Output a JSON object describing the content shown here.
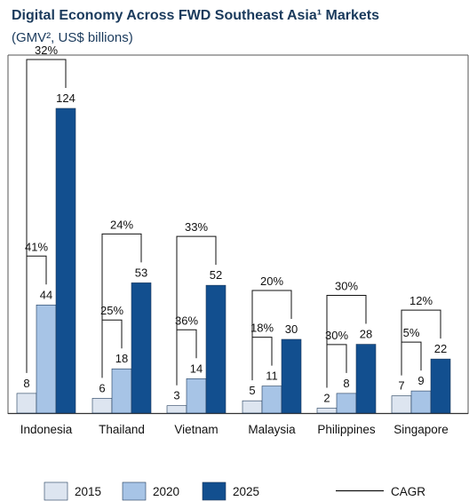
{
  "title": "Digital Economy Across FWD Southeast Asia¹ Markets",
  "subtitle": "(GMV², US$ billions)",
  "colors": {
    "title": "#1a3a5c",
    "2015": "#dde5f0",
    "2020": "#a7c4e6",
    "2025": "#124f8f",
    "bar_stroke": "#1f3a5a",
    "bracket": "#111111"
  },
  "chart_data": {
    "type": "bar",
    "title": "Digital Economy Across FWD Southeast Asia¹ Markets",
    "subtitle": "(GMV², US$ billions)",
    "categories": [
      "Indonesia",
      "Thailand",
      "Vietnam",
      "Malaysia",
      "Philippines",
      "Singapore"
    ],
    "series": [
      {
        "name": "2015",
        "values": [
          8,
          6,
          3,
          5,
          2,
          7
        ]
      },
      {
        "name": "2020",
        "values": [
          44,
          18,
          14,
          11,
          8,
          9
        ]
      },
      {
        "name": "2025",
        "values": [
          124,
          53,
          52,
          30,
          28,
          22
        ]
      }
    ],
    "cagr_2015_2025": [
      "32%",
      "24%",
      "33%",
      "20%",
      "30%",
      "12%"
    ],
    "cagr_2015_2020": [
      "41%",
      "25%",
      "36%",
      "18%",
      "30%",
      "5%"
    ],
    "ylim": [
      0,
      124
    ],
    "xlabel": "",
    "ylabel": "",
    "legend": {
      "position": "bottom",
      "items": [
        "2015",
        "2020",
        "2025"
      ],
      "line_item": "CAGR"
    }
  }
}
